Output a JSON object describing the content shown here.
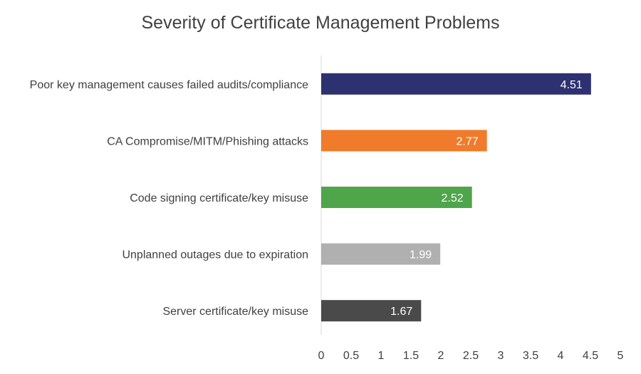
{
  "chart_data": {
    "type": "bar",
    "orientation": "horizontal",
    "title": "Severity of Certificate Management Problems",
    "categories": [
      "Poor key management causes failed audits/compliance",
      "CA Compromise/MITM/Phishing attacks",
      "Code signing certificate/key misuse",
      "Unplanned outages due to expiration",
      "Server certificate/key misuse"
    ],
    "values": [
      4.51,
      2.77,
      2.52,
      1.99,
      1.67
    ],
    "data_labels": [
      "4.51",
      "2.77",
      "2.52",
      "1.99",
      "1.67"
    ],
    "bar_colors": [
      "#2e3170",
      "#ef7b2b",
      "#4ea54a",
      "#b0b0b0",
      "#4a4a4a"
    ],
    "xlim": [
      0,
      5
    ],
    "x_ticks": [
      0,
      0.5,
      1,
      1.5,
      2,
      2.5,
      3,
      3.5,
      4,
      4.5,
      5
    ],
    "x_tick_labels": [
      "0",
      "0.5",
      "1",
      "1.5",
      "2",
      "2.5",
      "3",
      "3.5",
      "4",
      "4.5",
      "5"
    ],
    "grid": false,
    "legend": "none"
  }
}
